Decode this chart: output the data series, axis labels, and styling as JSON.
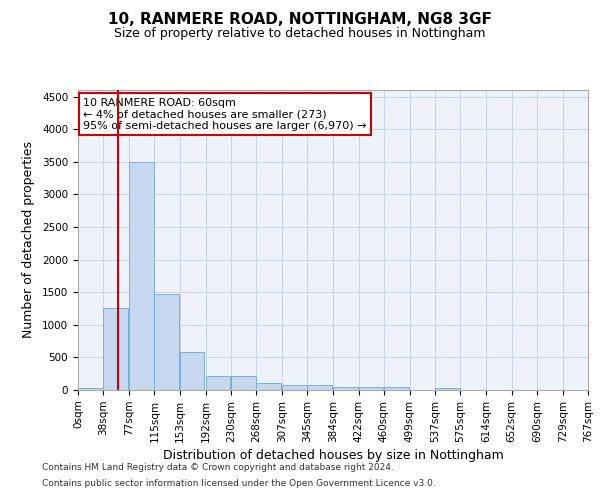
{
  "title1": "10, RANMERE ROAD, NOTTINGHAM, NG8 3GF",
  "title2": "Size of property relative to detached houses in Nottingham",
  "xlabel": "Distribution of detached houses by size in Nottingham",
  "ylabel": "Number of detached properties",
  "footer1": "Contains HM Land Registry data © Crown copyright and database right 2024.",
  "footer2": "Contains public sector information licensed under the Open Government Licence v3.0.",
  "annotation_line1": "10 RANMERE ROAD: 60sqm",
  "annotation_line2": "← 4% of detached houses are smaller (273)",
  "annotation_line3": "95% of semi-detached houses are larger (6,970) →",
  "bar_left_edges": [
    0,
    38,
    77,
    115,
    153,
    192,
    230,
    268,
    307,
    345,
    384,
    422,
    460,
    499,
    537,
    575,
    614,
    652,
    690,
    729
  ],
  "bar_heights": [
    30,
    1250,
    3500,
    1470,
    580,
    220,
    215,
    110,
    80,
    75,
    50,
    50,
    45,
    5,
    25,
    3,
    2,
    1,
    1,
    1
  ],
  "bin_width": 38,
  "bar_color": "#c5d8f0",
  "bar_edge_color": "#7aafd4",
  "grid_color": "#c8d4e8",
  "bg_color": "#eef3fb",
  "red_line_x": 60,
  "ylim": [
    0,
    4600
  ],
  "yticks": [
    0,
    500,
    1000,
    1500,
    2000,
    2500,
    3000,
    3500,
    4000,
    4500
  ],
  "xlim": [
    0,
    767
  ],
  "xtick_labels": [
    "0sqm",
    "38sqm",
    "77sqm",
    "115sqm",
    "153sqm",
    "192sqm",
    "230sqm",
    "268sqm",
    "307sqm",
    "345sqm",
    "384sqm",
    "422sqm",
    "460sqm",
    "499sqm",
    "537sqm",
    "575sqm",
    "614sqm",
    "652sqm",
    "690sqm",
    "729sqm",
    "767sqm"
  ],
  "xtick_positions": [
    0,
    38,
    77,
    115,
    153,
    192,
    230,
    268,
    307,
    345,
    384,
    422,
    460,
    499,
    537,
    575,
    614,
    652,
    690,
    729,
    767
  ],
  "title1_fontsize": 11,
  "title2_fontsize": 9,
  "xlabel_fontsize": 9,
  "ylabel_fontsize": 9,
  "tick_fontsize": 7.5,
  "footer_fontsize": 6.5,
  "annotation_fontsize": 8
}
